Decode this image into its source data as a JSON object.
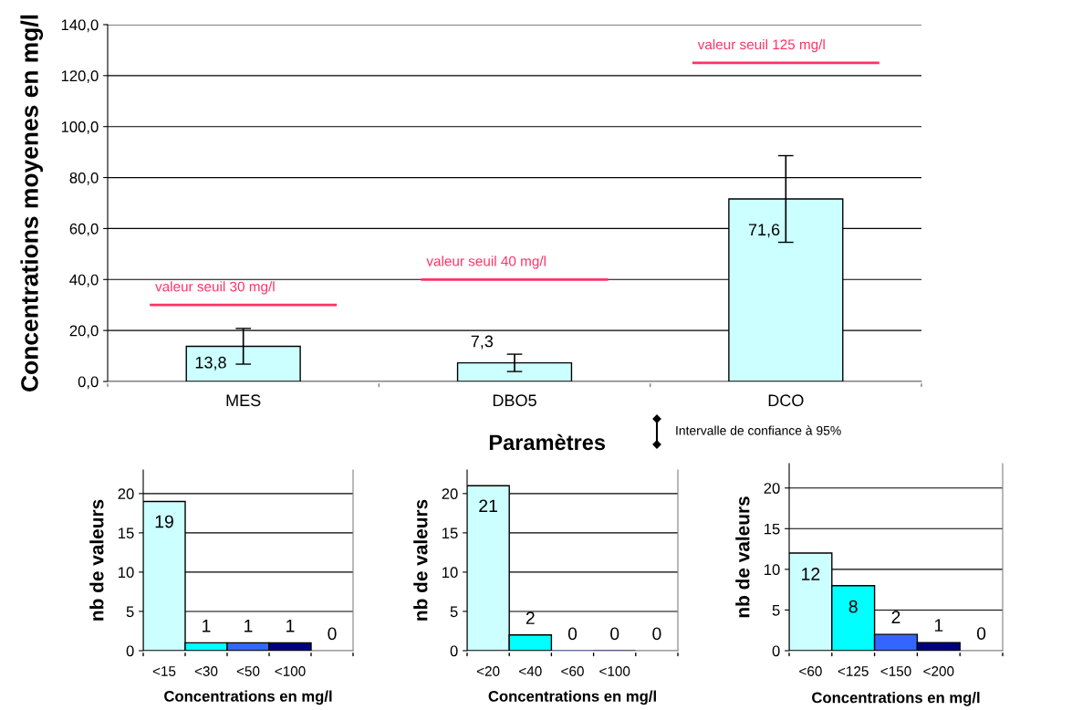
{
  "chart_data": [
    {
      "type": "bar",
      "xlabel": "Paramètres",
      "ylabel": "Concentrations moyenes en mg/l",
      "categories": [
        "MES",
        "DBO5",
        "DCO"
      ],
      "values": [
        13.8,
        7.3,
        71.6
      ],
      "value_labels": [
        "13,8",
        "7,3",
        "71,6"
      ],
      "errors": [
        7.0,
        3.4,
        17.0
      ],
      "color": "#ccffff",
      "ylim": [
        0,
        140
      ],
      "yticks": [
        {
          "value": 0,
          "label": "0,0"
        },
        {
          "value": 20,
          "label": "20,0"
        },
        {
          "value": 40,
          "label": "40,0"
        },
        {
          "value": 60,
          "label": "60,0"
        },
        {
          "value": 80,
          "label": "80,0"
        },
        {
          "value": 100,
          "label": "100,0"
        },
        {
          "value": 120,
          "label": "120,0"
        },
        {
          "value": 140,
          "label": "140,0"
        }
      ],
      "ref_lines": [
        {
          "axis": "y",
          "value": 30,
          "label": "valeur seuil 30 mg/l",
          "color": "#ff3366"
        },
        {
          "axis": "y",
          "value": 40,
          "label": "valeur seuil 40 mg/l",
          "color": "#ff3366"
        },
        {
          "axis": "y",
          "value": 125,
          "label": "valeur seuil 125 mg/l",
          "color": "#ff3366"
        }
      ],
      "annotations": [
        "Intervalle de confiance à 95%"
      ],
      "grid": "y",
      "legend": false
    },
    {
      "type": "bar",
      "xlabel": "Concentrations en mg/l",
      "ylabel": "nb de valeurs",
      "categories": [
        "<15",
        "<30",
        "<50",
        "<100",
        null
      ],
      "values": [
        19,
        1,
        1,
        1,
        0
      ],
      "colors": [
        "#ccffff",
        "#00ffff",
        "#3366ff",
        "#000080",
        "#ffffff"
      ],
      "data_labels": true,
      "ylim": [
        0,
        23
      ],
      "yticks": [
        0,
        5,
        10,
        15,
        20
      ],
      "grid": "y",
      "legend": false
    },
    {
      "type": "bar",
      "xlabel": "Concentrations en mg/l",
      "ylabel": "nb de valeurs",
      "categories": [
        "<20",
        "<40",
        "<60",
        "<100",
        null
      ],
      "values": [
        21,
        2,
        0,
        0,
        0
      ],
      "colors": [
        "#ccffff",
        "#00ffff",
        "#3366ff",
        "#000080",
        "#ffffff"
      ],
      "data_labels": true,
      "ylim": [
        0,
        23
      ],
      "yticks": [
        0,
        5,
        10,
        15,
        20
      ],
      "grid": "y",
      "legend": false
    },
    {
      "type": "bar",
      "xlabel": "Concentrations en mg/l",
      "ylabel": "nb de valeurs",
      "categories": [
        "<60",
        "<125",
        "<150",
        "<200",
        null
      ],
      "values": [
        12,
        8,
        2,
        1,
        0
      ],
      "colors": [
        "#ccffff",
        "#00ffff",
        "#3366ff",
        "#000080",
        "#ffffff"
      ],
      "data_labels": true,
      "ylim": [
        0,
        23
      ],
      "yticks": [
        0,
        5,
        10,
        15,
        20
      ],
      "grid": "y",
      "legend": false
    }
  ]
}
